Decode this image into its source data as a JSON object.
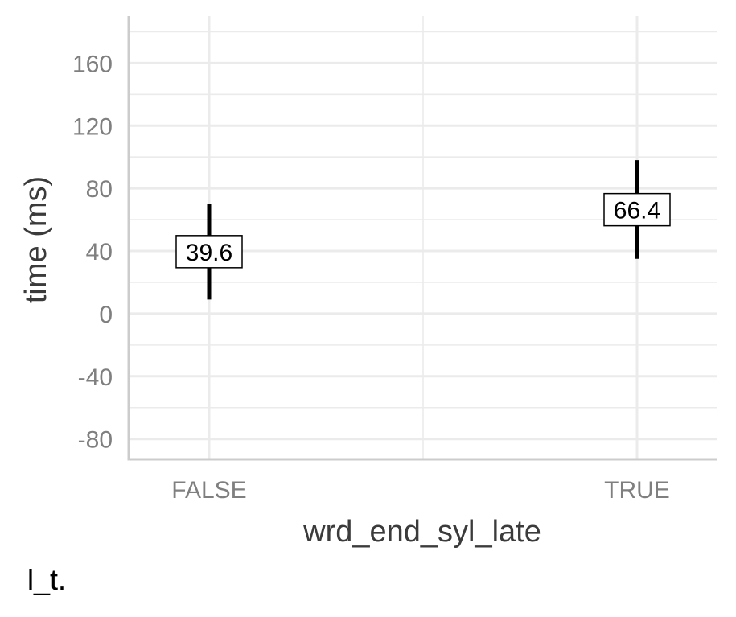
{
  "chart_data": {
    "type": "errorbar",
    "xlabel": "wrd_end_syl_late",
    "ylabel": "time (ms)",
    "categories": [
      "FALSE",
      "TRUE"
    ],
    "series": [
      {
        "values": [
          39.6,
          66.4
        ],
        "lower": [
          9,
          35
        ],
        "upper": [
          70,
          98
        ],
        "labels": [
          "39.6",
          "66.4"
        ]
      }
    ],
    "yticks": [
      -80,
      -40,
      0,
      40,
      80,
      120,
      160
    ],
    "ytick_labels": [
      "-80",
      "-40",
      "0",
      "40",
      "80",
      "120",
      "160"
    ],
    "ylim": [
      -93,
      190
    ],
    "grid": true,
    "colors": {
      "grid": "#ebebeb",
      "axis": "#cccccc",
      "errorbar": "#000000"
    }
  },
  "caption": "l_t."
}
